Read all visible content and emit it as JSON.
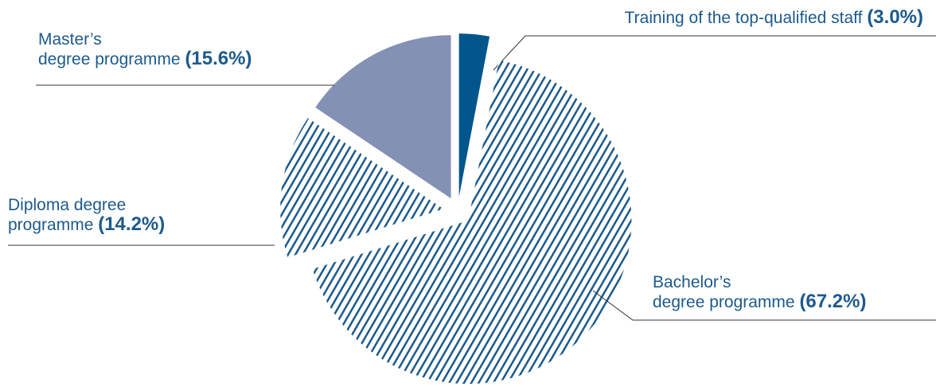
{
  "chart_data": {
    "type": "pie",
    "categories": [
      "Training of the top-qualified staff",
      "Bachelor’s\ndegree programme",
      "Diploma degree\nprogramme",
      "Master’s\ndegree programme"
    ],
    "values": [
      3.0,
      67.2,
      14.2,
      15.6
    ],
    "value_labels": [
      "(3.0%)",
      "(67.2%)",
      "(14.2%)",
      "(15.6%)"
    ],
    "colors": [
      "#00568c",
      "#1d5a8c",
      "#1d5a8c",
      "#8391b5"
    ],
    "hatch": [
      false,
      true,
      true,
      false
    ]
  }
}
